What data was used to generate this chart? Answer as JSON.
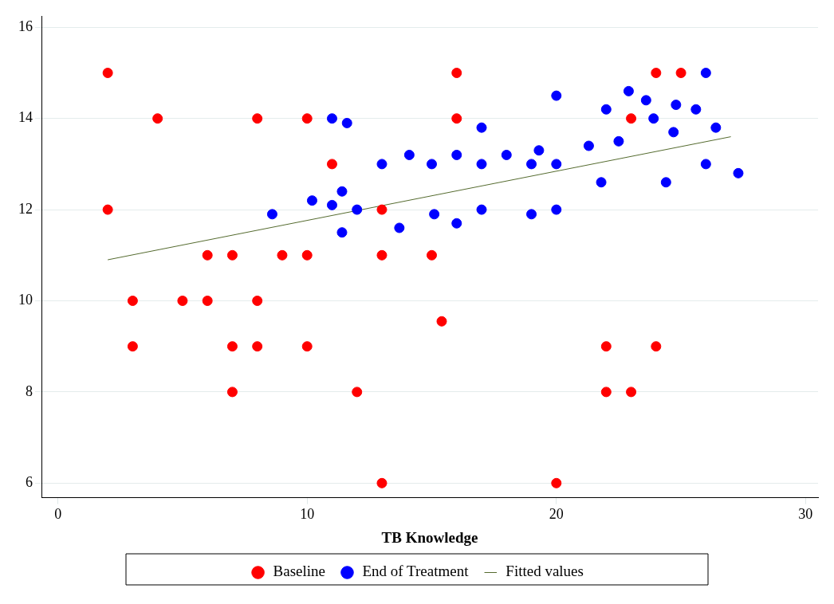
{
  "chart_data": {
    "type": "scatter",
    "xlabel": "TB Knowledge",
    "xlim": [
      -0.66,
      30.5
    ],
    "xticks": [
      0,
      10,
      20,
      30
    ],
    "ylim": [
      5.68,
      16.25
    ],
    "yticks": [
      6,
      8,
      10,
      12,
      14,
      16
    ],
    "grid": "y",
    "legend": "bottom",
    "marker": "circle",
    "series": [
      {
        "name": "Baseline",
        "color": "#ff0000",
        "x": [
          2,
          2,
          3,
          3,
          4,
          5,
          6,
          6,
          7,
          7,
          7,
          8,
          8,
          8,
          9,
          10,
          10,
          10,
          11,
          12,
          13,
          13,
          13,
          15,
          15.4,
          16,
          16,
          20,
          22,
          22,
          23,
          23,
          24,
          24,
          25
        ],
        "values": [
          15,
          12,
          10,
          9,
          14,
          10,
          11,
          10,
          11,
          9,
          8,
          14,
          10,
          9,
          11,
          14,
          11,
          9,
          13,
          8,
          12,
          11,
          6,
          11,
          9.55,
          15,
          14,
          6,
          9,
          8,
          14,
          8,
          15,
          9,
          15
        ]
      },
      {
        "name": "End of Treatment",
        "color": "#0000ff",
        "x": [
          8.6,
          10.2,
          11,
          11.6,
          11,
          11.4,
          11.4,
          12,
          13,
          13.7,
          14.1,
          15,
          15.1,
          16,
          16,
          17,
          17,
          17,
          18,
          19,
          19.3,
          19,
          20,
          20,
          20,
          21.3,
          21.8,
          22,
          22.5,
          22.9,
          23.6,
          23.9,
          24.4,
          24.8,
          24.7,
          25.6,
          26,
          26,
          26.4,
          27.3
        ],
        "values": [
          11.9,
          12.2,
          14,
          13.9,
          12.1,
          12.4,
          11.5,
          12,
          13,
          11.6,
          13.2,
          13,
          11.9,
          13.2,
          11.7,
          13.8,
          13,
          12,
          13.2,
          13,
          13.3,
          11.9,
          14.5,
          13,
          12,
          13.4,
          12.6,
          14.2,
          13.5,
          14.6,
          14.4,
          14,
          12.6,
          14.3,
          13.7,
          14.2,
          15,
          13,
          13.8,
          12.8
        ]
      },
      {
        "name": "Fitted values",
        "type": "line",
        "color": "#556b2f",
        "marker": "none",
        "x": [
          2,
          27
        ],
        "values": [
          10.9,
          13.6
        ]
      }
    ]
  }
}
